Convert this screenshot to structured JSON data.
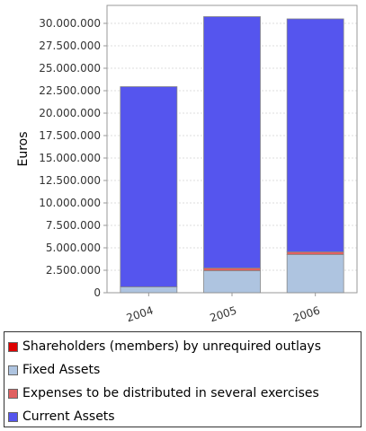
{
  "chart_data": {
    "type": "bar",
    "stacked": true,
    "title": "",
    "xlabel": "",
    "ylabel": "Euros",
    "categories": [
      "2004",
      "2005",
      "2006"
    ],
    "ylim": [
      0,
      32000000
    ],
    "yticks": [
      "0",
      "2.500.000",
      "5.000.000",
      "7.500.000",
      "10.000.000",
      "12.500.000",
      "15.000.000",
      "17.500.000",
      "20.000.000",
      "22.500.000",
      "25.000.000",
      "27.500.000",
      "30.000.000"
    ],
    "ytick_values": [
      0,
      2500000,
      5000000,
      7500000,
      10000000,
      12500000,
      15000000,
      17500000,
      20000000,
      22500000,
      25000000,
      27500000,
      30000000
    ],
    "grid": true,
    "legend_position": "bottom",
    "series": [
      {
        "name": "Shareholders (members) by unrequired outlays",
        "color": "#dd0000",
        "values": [
          0,
          0,
          0
        ]
      },
      {
        "name": "Fixed Assets",
        "color": "#aec4e0",
        "values": [
          650000,
          2450000,
          4250000
        ]
      },
      {
        "name": "Expenses to be distributed in several exercises",
        "color": "#e06060",
        "values": [
          0,
          300000,
          300000
        ]
      },
      {
        "name": "Current Assets",
        "color": "#5555ee",
        "values": [
          22300000,
          28000000,
          25950000
        ]
      }
    ]
  }
}
